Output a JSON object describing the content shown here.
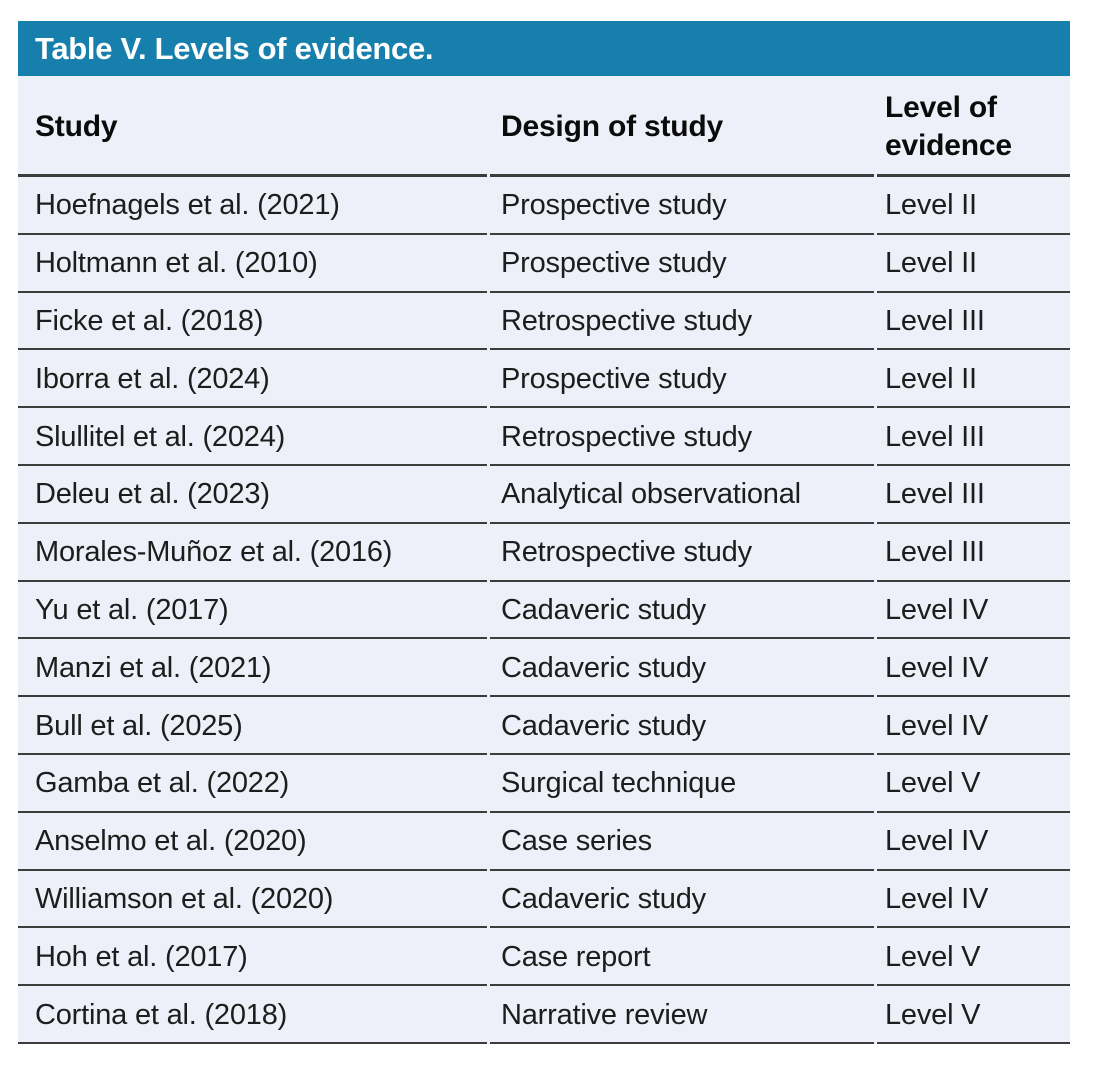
{
  "table": {
    "title": "Table V. Levels of evidence.",
    "columns": [
      "Study",
      "Design of study",
      "Level of evidence"
    ],
    "rows": [
      {
        "study": "Hoefnagels et al. (2021)",
        "design": "Prospective study",
        "level": "Level II"
      },
      {
        "study": "Holtmann et al. (2010)",
        "design": "Prospective study",
        "level": "Level II"
      },
      {
        "study": "Ficke et al. (2018)",
        "design": "Retrospective study",
        "level": "Level III"
      },
      {
        "study": "Iborra et al. (2024)",
        "design": "Prospective study",
        "level": "Level II"
      },
      {
        "study": "Slullitel et al. (2024)",
        "design": "Retrospective study",
        "level": "Level III"
      },
      {
        "study": "Deleu et al. (2023)",
        "design": "Analytical observational",
        "level": "Level III"
      },
      {
        "study": "Morales-Muñoz et al. (2016)",
        "design": "Retrospective study",
        "level": "Level III"
      },
      {
        "study": "Yu et al. (2017)",
        "design": "Cadaveric study",
        "level": "Level IV"
      },
      {
        "study": "Manzi et al. (2021)",
        "design": "Cadaveric study",
        "level": "Level IV"
      },
      {
        "study": "Bull et al. (2025)",
        "design": "Cadaveric study",
        "level": "Level IV"
      },
      {
        "study": "Gamba et al. (2022)",
        "design": "Surgical technique",
        "level": "Level V"
      },
      {
        "study": "Anselmo et al. (2020)",
        "design": "Case series",
        "level": "Level IV"
      },
      {
        "study": "Williamson et al. (2020)",
        "design": "Cadaveric study",
        "level": "Level IV"
      },
      {
        "study": "Hoh et al. (2017)",
        "design": "Case report",
        "level": "Level V"
      },
      {
        "study": "Cortina et al. (2018)",
        "design": "Narrative review",
        "level": "Level V"
      }
    ]
  },
  "colors": {
    "title_bg": "#177fab",
    "row_bg": "#edf0f8",
    "line": "#3c3c3c",
    "title_color": "#ffffff",
    "header_text": "#0b0b0b",
    "body_text": "#1d1d1d",
    "page_bg": "#ffffff"
  }
}
